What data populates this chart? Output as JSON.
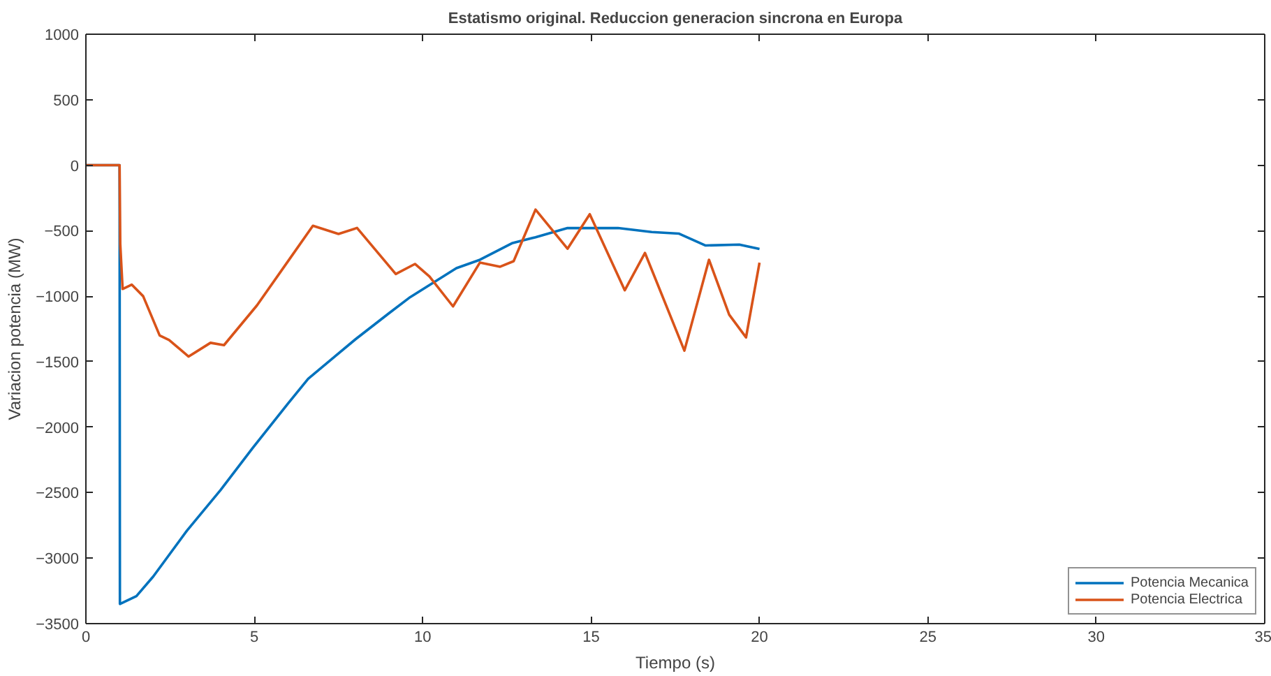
{
  "chart_data": {
    "type": "line",
    "title": "Estatismo original. Reduccion generacion sincrona en Europa",
    "xlabel": "Tiempo (s)",
    "ylabel": "Variacion potencia (MW)",
    "xlim": [
      0,
      35
    ],
    "xticks": [
      0,
      5,
      10,
      15,
      20,
      25,
      30,
      35
    ],
    "ylim": [
      -3500,
      1000
    ],
    "yticks": [
      -3500,
      -3000,
      -2500,
      -2000,
      -1500,
      -1000,
      -500,
      0,
      500,
      1000
    ],
    "grid": false,
    "legend": "bottom right",
    "line_style": "solid",
    "marker": "none",
    "series": [
      {
        "name": "Potencia Mecanica",
        "color": "#0072bd",
        "x": [
          0,
          1,
          1.01,
          1.5,
          2,
          3,
          4,
          4.95,
          6,
          6.6,
          8,
          9,
          9.63,
          11,
          11.7,
          12.65,
          13.35,
          14.3,
          15.8,
          16.8,
          17.6,
          18.4,
          19.4,
          20
        ],
        "values": [
          0,
          0,
          -3350,
          -3290,
          -3140,
          -2790,
          -2480,
          -2160,
          -1820,
          -1630,
          -1330,
          -1130,
          -1007,
          -786,
          -722,
          -596,
          -550,
          -480,
          -480,
          -510,
          -522,
          -613,
          -606,
          -640
        ]
      },
      {
        "name": "Potencia Electrica",
        "color": "#d95319",
        "x": [
          0,
          1,
          1.02,
          1.09,
          1.36,
          1.7,
          2.19,
          2.47,
          3.05,
          3.7,
          4.1,
          5.08,
          6.04,
          6.74,
          7.5,
          8.05,
          9.2,
          9.77,
          10.2,
          10.9,
          11.7,
          12.3,
          12.7,
          13.35,
          14.3,
          14.96,
          16.0,
          16.6,
          17.77,
          18.5,
          19.1,
          19.6,
          20
        ],
        "values": [
          0,
          0,
          -600,
          -945,
          -912,
          -1000,
          -1300,
          -1335,
          -1461,
          -1356,
          -1374,
          -1070,
          -719,
          -462,
          -525,
          -479,
          -831,
          -754,
          -850,
          -1078,
          -743,
          -775,
          -733,
          -339,
          -638,
          -374,
          -955,
          -670,
          -1416,
          -722,
          -1141,
          -1315,
          -744
        ]
      }
    ]
  }
}
